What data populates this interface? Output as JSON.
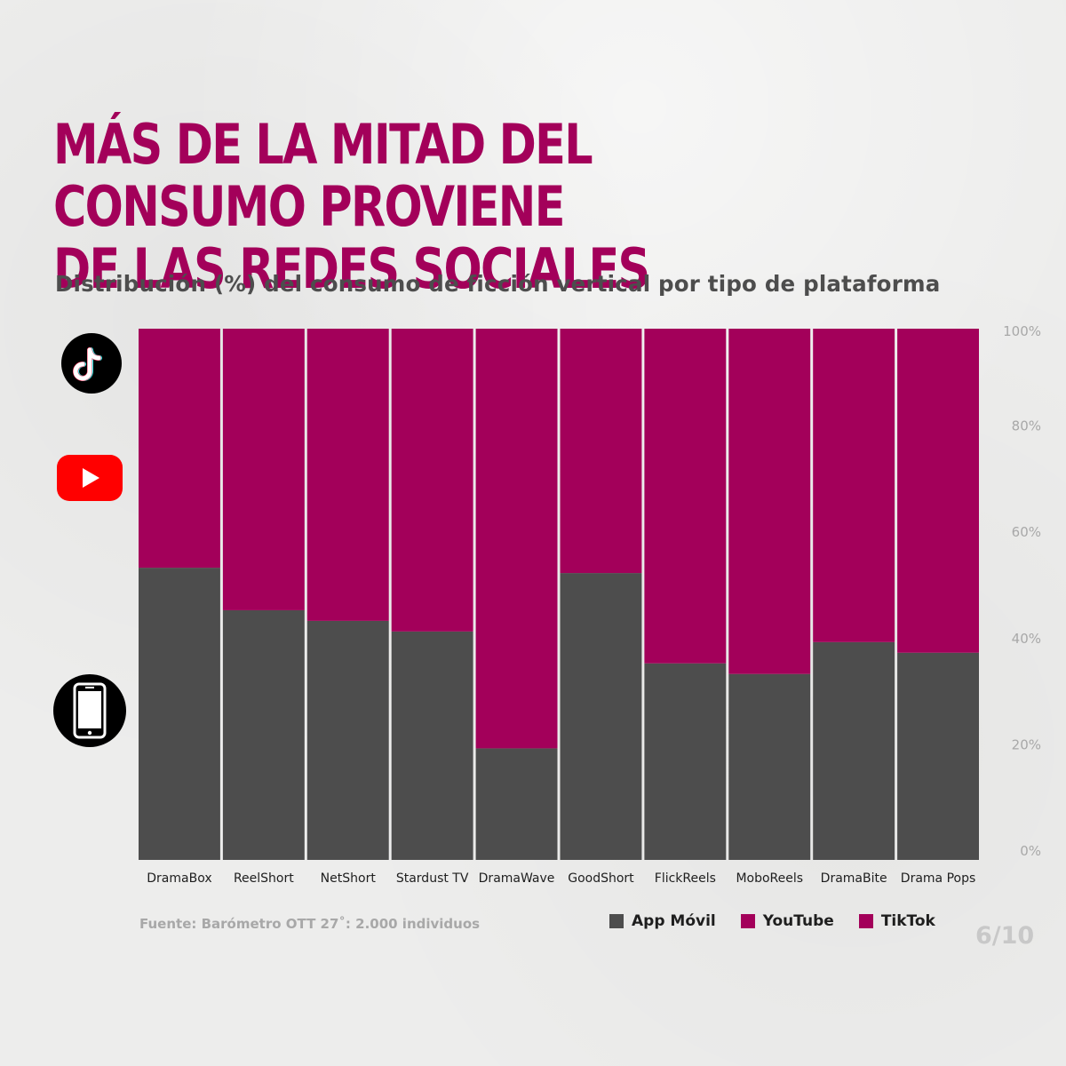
{
  "title_lines": [
    "MÁS DE LA MITAD DEL CONSUMO PROVIENE",
    "DE LAS REDES SOCIALES"
  ],
  "subtitle": "Distribución (%) del consumo de ficción vertical por tipo de plataforma",
  "source": "Fuente: Barómetro OTT 27˚: 2.000 individuos",
  "page_number": "6/10",
  "icons": [
    "tiktok-icon",
    "youtube-icon",
    "smartphone-icon"
  ],
  "colors": {
    "app": "#4d4d4d",
    "youtube": "#a3005a",
    "tiktok": "#a3005a",
    "title": "#a3005a",
    "axis_text": "#a8a8a8"
  },
  "legend": [
    {
      "label": "App Móvil",
      "color": "#4d4d4d"
    },
    {
      "label": "YouTube",
      "color": "#a3005a"
    },
    {
      "label": "TikTok",
      "color": "#a3005a"
    }
  ],
  "chart_data": {
    "type": "bar",
    "stacked": true,
    "categories": [
      "DramaBox",
      "ReelShort",
      "NetShort",
      "Stardust TV",
      "DramaWave",
      "GoodShort",
      "FlickReels",
      "MoboReels",
      "DramaBite",
      "Drama Pops"
    ],
    "series": [
      {
        "name": "App Móvil",
        "values": [
          55,
          47,
          45,
          43,
          21,
          54,
          37,
          35,
          41,
          39
        ]
      },
      {
        "name": "Redes sociales",
        "values": [
          45,
          53,
          55,
          57,
          79,
          46,
          63,
          65,
          59,
          61
        ]
      }
    ],
    "ylim": [
      0,
      100
    ],
    "yticks": [
      "0%",
      "20%",
      "40%",
      "60%",
      "80%",
      "100%"
    ],
    "ytick_values": [
      0,
      20,
      40,
      60,
      80,
      100
    ],
    "axis_position": "right",
    "grid": false,
    "legend_position": "bottom-right"
  }
}
